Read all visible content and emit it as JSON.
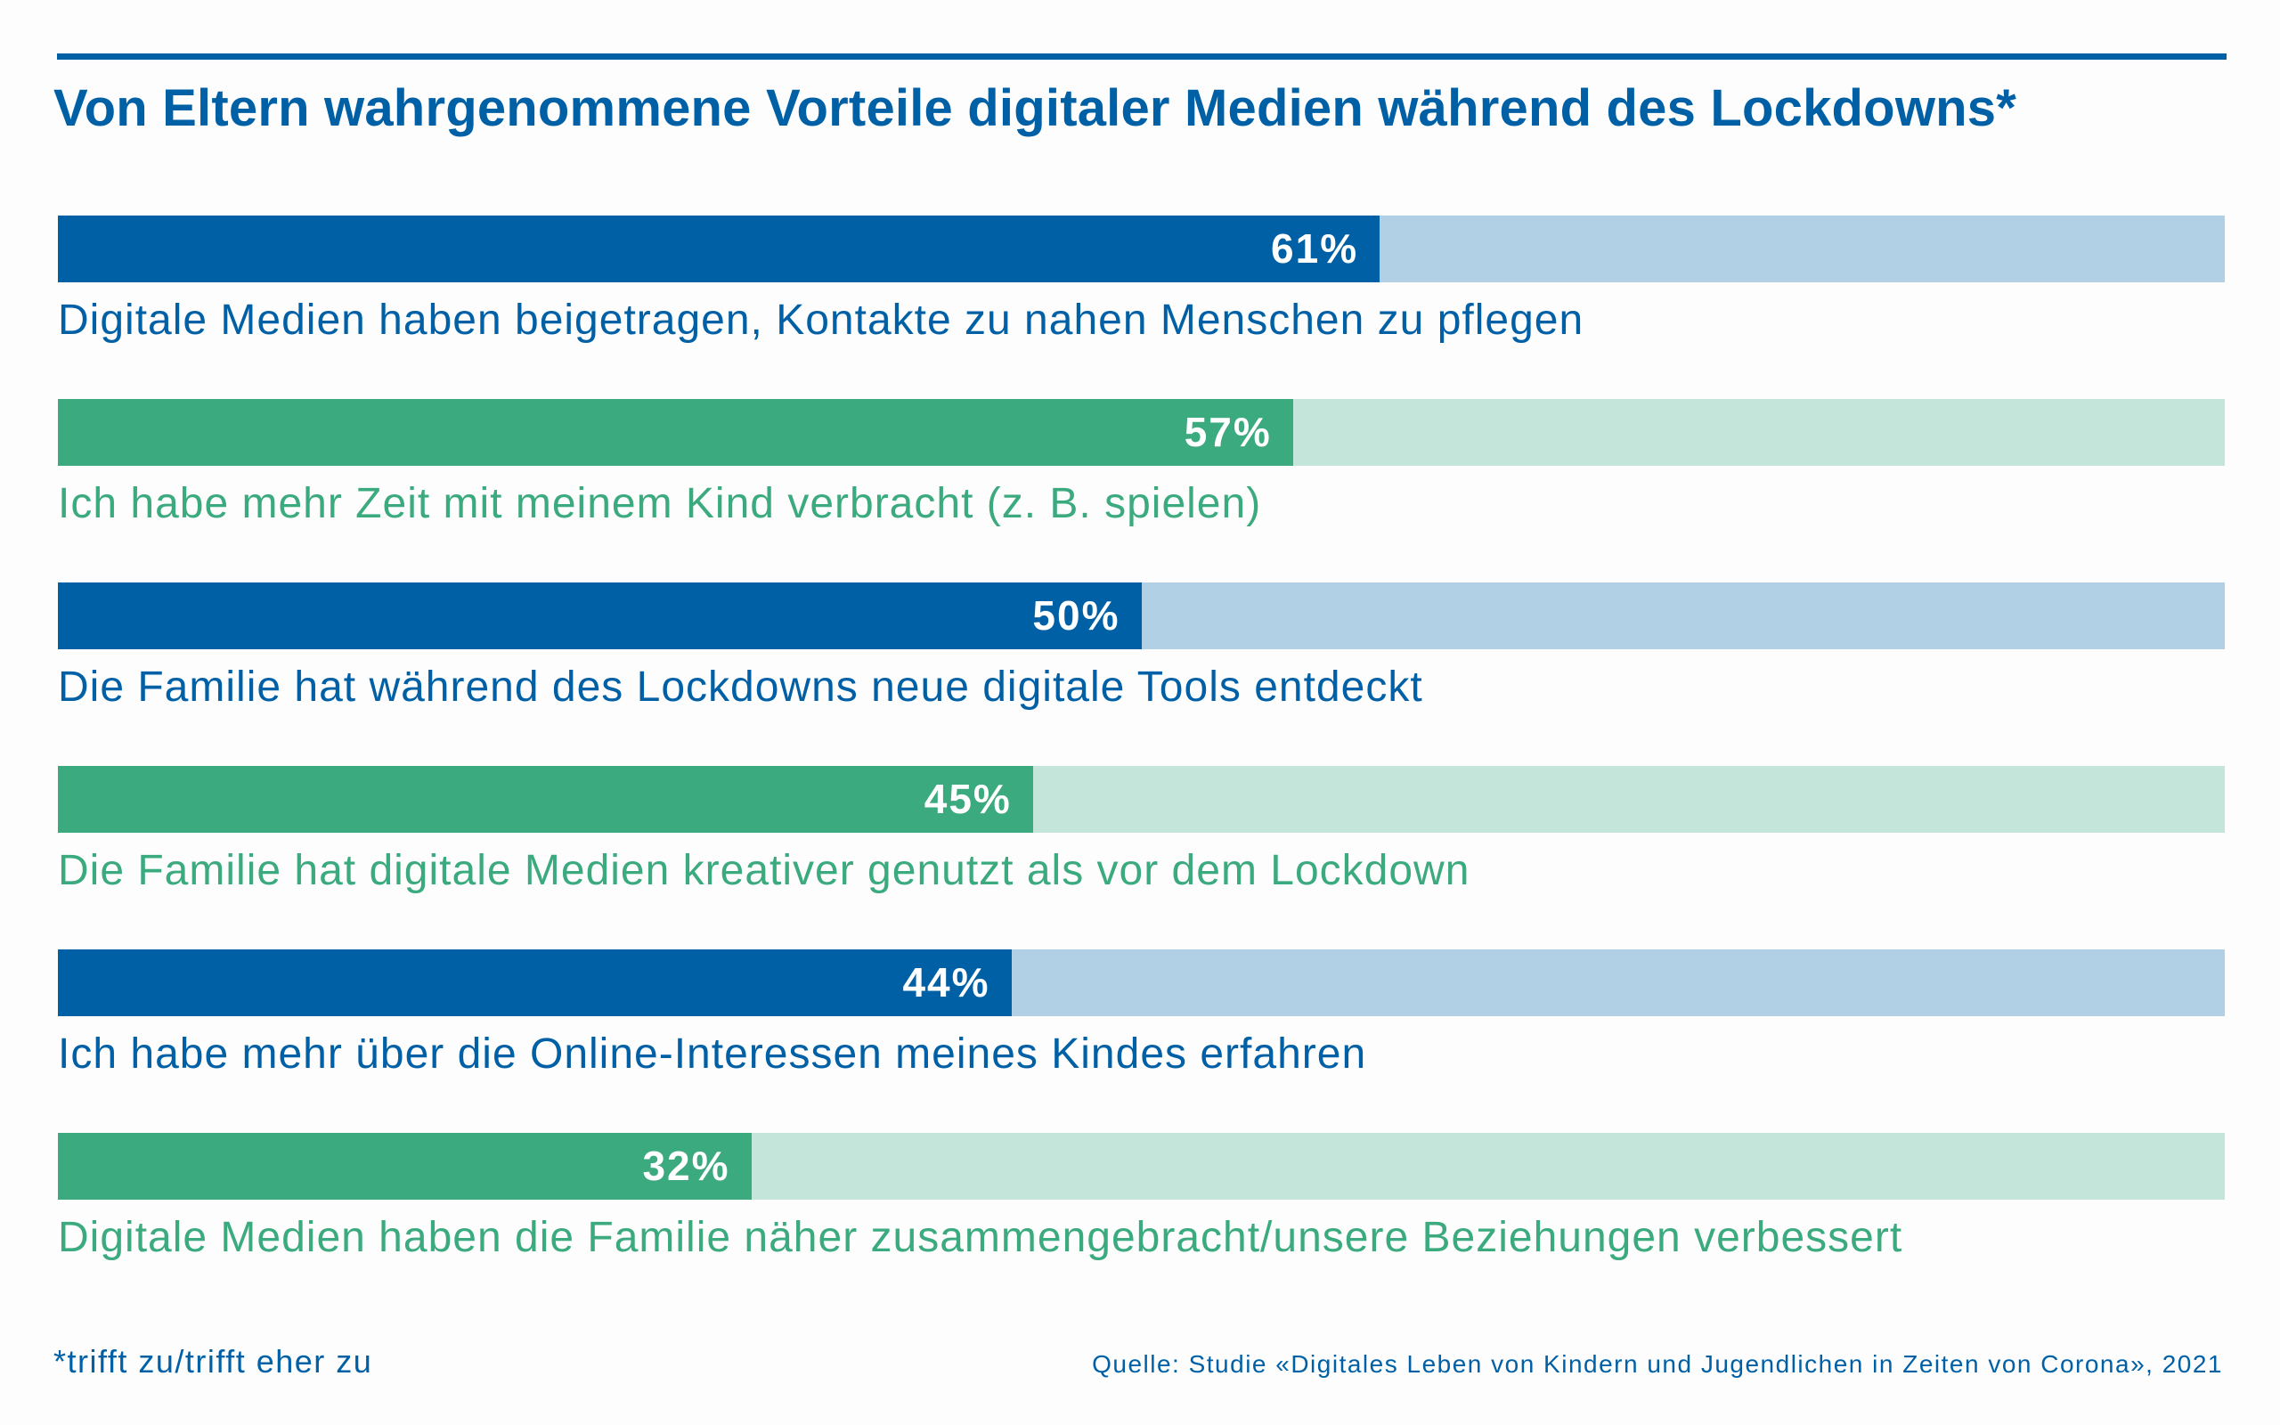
{
  "title": "Von Eltern wahrgenommene Vorteile digitaler Medien während des Lockdowns*",
  "footnote": "*trifft zu/trifft eher zu",
  "source": "Quelle: Studie «Digitales Leben von Kindern und Jugendlichen in Zeiten von Corona», 2021",
  "colors": {
    "blue": "#0060a6",
    "blue_light": "#b2d0e5",
    "green": "#3baa7e",
    "green_light": "#c4e6da"
  },
  "chart_data": {
    "type": "bar",
    "orientation": "horizontal",
    "xlim": [
      0,
      100
    ],
    "unit": "%",
    "grid": false,
    "categories": [
      "Digitale Medien haben beigetragen, Kontakte zu nahen Menschen zu pflegen",
      "Ich habe mehr Zeit mit meinem Kind verbracht (z. B. spielen)",
      "Die Familie hat während des Lockdowns neue digitale Tools entdeckt",
      "Die Familie hat digitale Medien kreativer genutzt als vor dem Lockdown",
      "Ich habe mehr über die Online-Interessen meines Kindes erfahren",
      "Digitale Medien haben die Familie näher zusammengebracht/unsere Beziehungen verbessert"
    ],
    "values": [
      61,
      57,
      50,
      45,
      44,
      32
    ],
    "value_labels": [
      "61%",
      "57%",
      "50%",
      "45%",
      "44%",
      "32%"
    ],
    "bar_colors": [
      "blue",
      "green",
      "blue",
      "green",
      "blue",
      "green"
    ]
  }
}
